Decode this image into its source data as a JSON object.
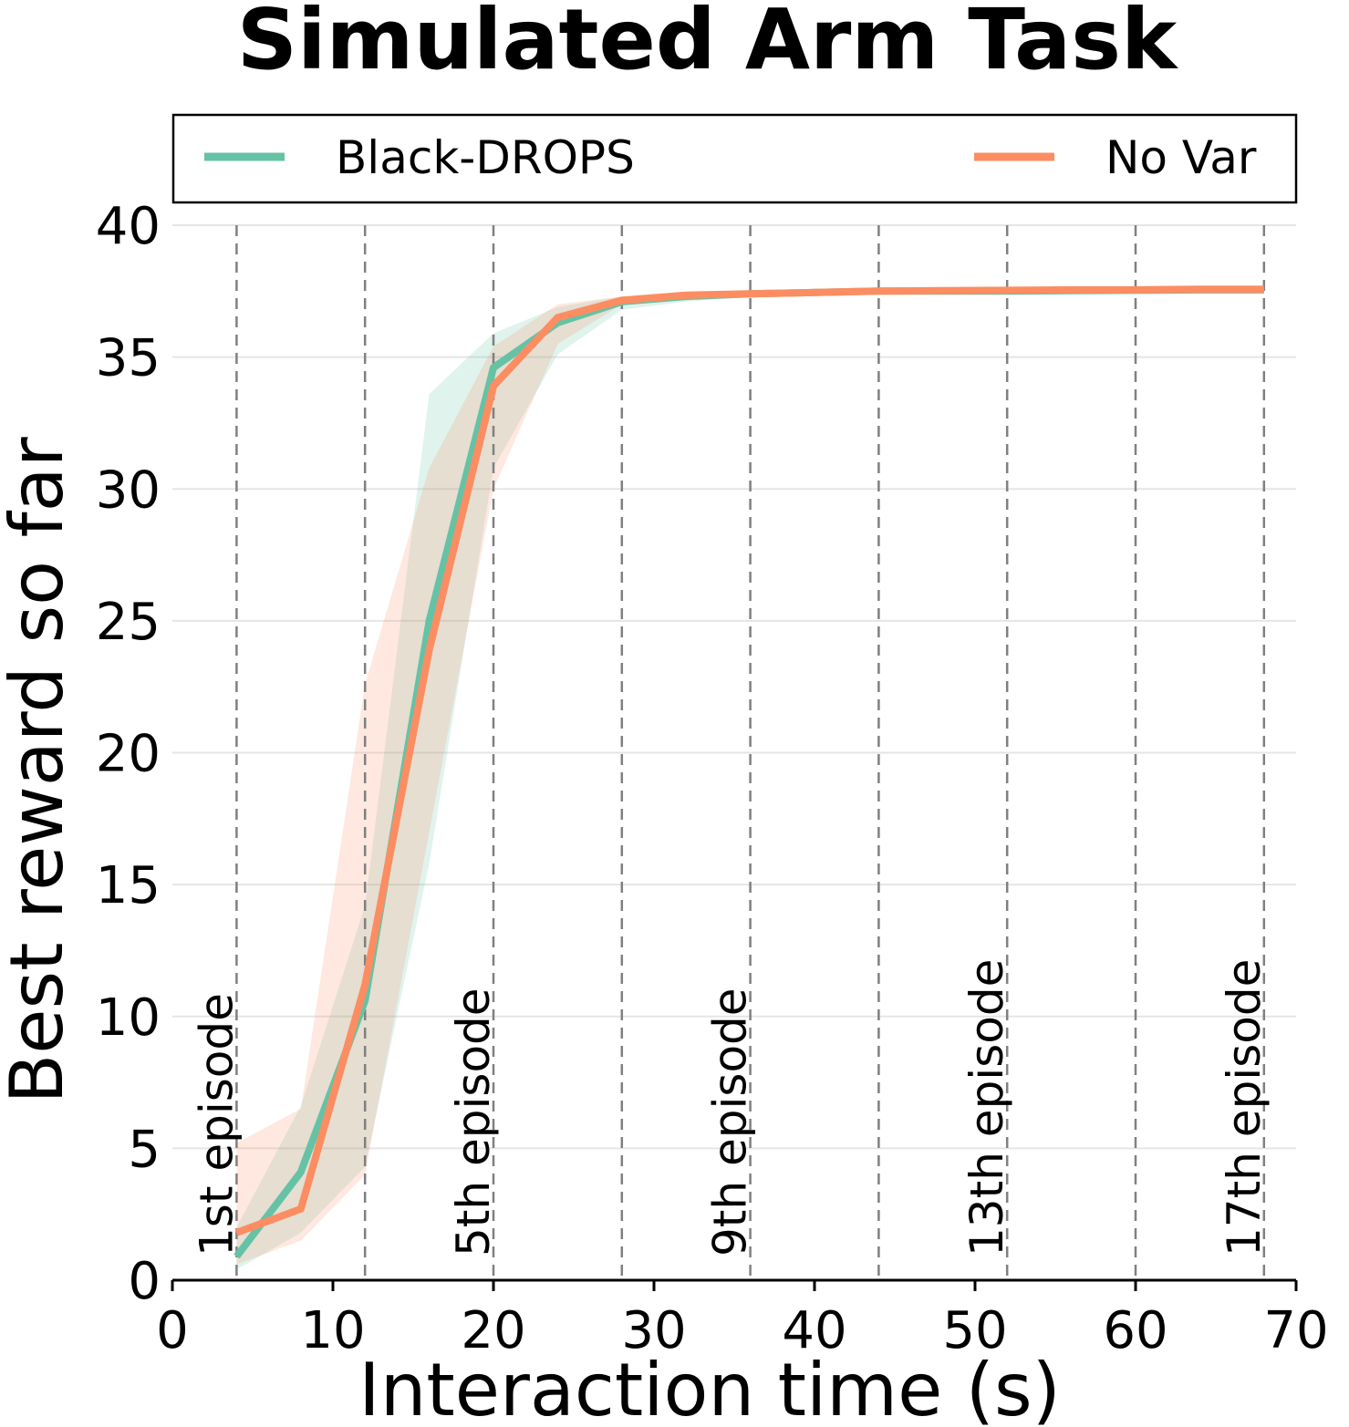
{
  "chart_data": {
    "type": "line",
    "title": "Simulated Arm Task",
    "xlabel": "Interaction time (s)",
    "ylabel": "Best reward so far",
    "xlim": [
      0,
      70
    ],
    "ylim": [
      0,
      40
    ],
    "xticks": [
      "0",
      "10",
      "20",
      "30",
      "40",
      "50",
      "60",
      "70"
    ],
    "yticks": [
      "0",
      "5",
      "10",
      "15",
      "20",
      "25",
      "30",
      "35",
      "40"
    ],
    "grid": "horizontal",
    "legend_position": "top",
    "episode_markers": {
      "x": [
        4,
        12,
        20,
        28,
        36,
        44,
        52,
        60,
        68
      ],
      "labels": [
        {
          "x": 4,
          "text": "1st episode"
        },
        {
          "x": 20,
          "text": "5th episode"
        },
        {
          "x": 36,
          "text": "9th episode"
        },
        {
          "x": 52,
          "text": "13th episode"
        },
        {
          "x": 68,
          "text": "17th episode"
        }
      ]
    },
    "series": [
      {
        "name": "Black-DROPS",
        "color": "#66c2a5",
        "x": [
          4,
          8,
          12,
          16,
          20,
          24,
          28,
          32,
          36,
          40,
          44,
          48,
          52,
          56,
          60,
          64,
          68
        ],
        "y": [
          0.9,
          4.1,
          10.6,
          25.0,
          34.6,
          36.3,
          37.1,
          37.3,
          37.4,
          37.45,
          37.5,
          37.5,
          37.5,
          37.52,
          37.53,
          37.55,
          37.55
        ],
        "lower": [
          0.4,
          1.8,
          4.3,
          15.8,
          30.8,
          35.1,
          36.8,
          37.1,
          37.3,
          37.4,
          37.45,
          37.45,
          37.45,
          37.48,
          37.5,
          37.5,
          37.5
        ],
        "upper": [
          2.0,
          6.6,
          14.2,
          33.6,
          35.9,
          36.9,
          37.3,
          37.45,
          37.5,
          37.52,
          37.55,
          37.57,
          37.57,
          37.58,
          37.58,
          37.6,
          37.6
        ]
      },
      {
        "name": "No Var",
        "color": "#fc8d62",
        "x": [
          4,
          8,
          12,
          16,
          20,
          24,
          28,
          32,
          36,
          40,
          44,
          48,
          52,
          56,
          60,
          64,
          68
        ],
        "y": [
          1.8,
          2.7,
          11.2,
          23.9,
          33.9,
          36.5,
          37.15,
          37.35,
          37.4,
          37.45,
          37.5,
          37.52,
          37.53,
          37.55,
          37.55,
          37.57,
          37.57
        ],
        "lower": [
          0.6,
          1.5,
          4.0,
          17.0,
          30.0,
          35.5,
          37.0,
          37.2,
          37.3,
          37.4,
          37.45,
          37.47,
          37.48,
          37.5,
          37.5,
          37.52,
          37.52
        ],
        "upper": [
          5.2,
          6.5,
          22.6,
          30.8,
          35.4,
          37.0,
          37.3,
          37.45,
          37.5,
          37.52,
          37.55,
          37.57,
          37.58,
          37.6,
          37.6,
          37.62,
          37.62
        ]
      }
    ]
  }
}
